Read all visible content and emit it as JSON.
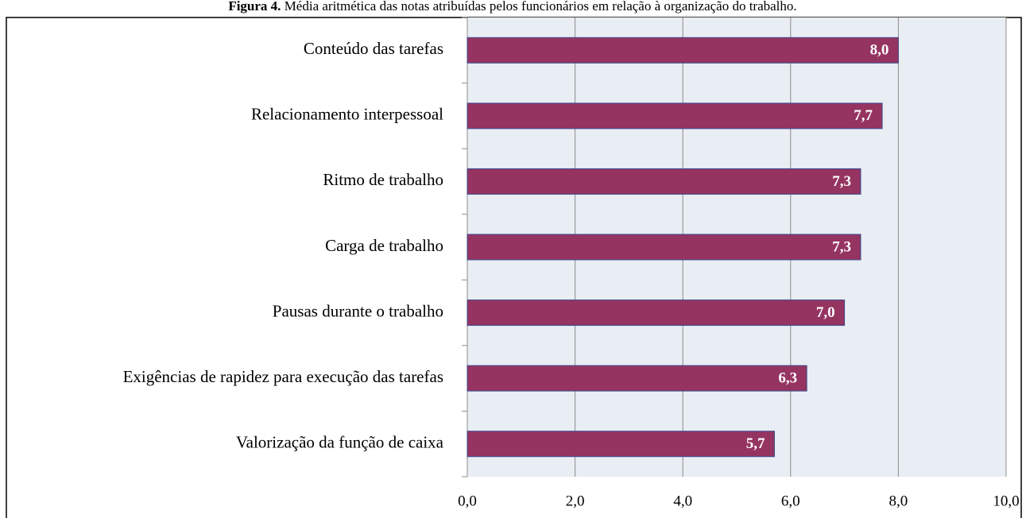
{
  "chart_data": {
    "type": "bar",
    "orientation": "horizontal",
    "figure_label": "Figura 4.",
    "title": "Média aritmética das notas atribuídas pelos funcionários em relação à organização do trabalho.",
    "categories": [
      "Conteúdo das tarefas",
      "Relacionamento interpessoal",
      "Ritmo de trabalho",
      "Carga de trabalho",
      "Pausas durante o trabalho",
      "Exigências de rapidez para execução das tarefas",
      "Valorização da função de caixa"
    ],
    "values": [
      8.0,
      7.7,
      7.3,
      7.3,
      7.0,
      6.3,
      5.7
    ],
    "value_labels": [
      "8,0",
      "7,7",
      "7,3",
      "7,3",
      "7,0",
      "6,3",
      "5,7"
    ],
    "color": "#953461",
    "xlim": [
      0,
      10
    ],
    "xticks": [
      {
        "value": 0,
        "label": "0,0"
      },
      {
        "value": 2,
        "label": "2,0"
      },
      {
        "value": 4,
        "label": "4,0"
      },
      {
        "value": 6,
        "label": "6,0"
      },
      {
        "value": 8,
        "label": "8,0"
      },
      {
        "value": 10,
        "label": "10,0"
      }
    ],
    "grid": true
  }
}
